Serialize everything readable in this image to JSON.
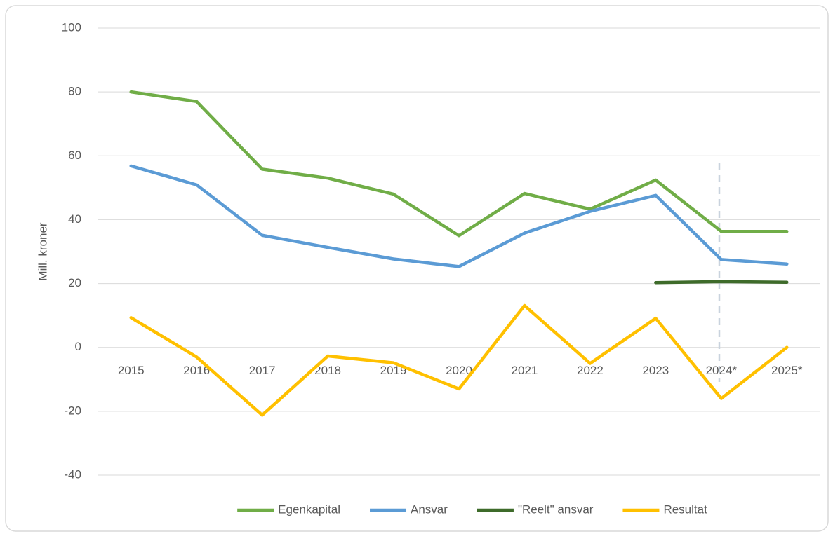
{
  "chart_data": {
    "type": "line",
    "y_label": "Mill. kroner",
    "categories": [
      "2015",
      "2016",
      "2017",
      "2018",
      "2019",
      "2020",
      "2021",
      "2022",
      "2023",
      "2024*",
      "2025*"
    ],
    "series": [
      {
        "name": "Egenkapital",
        "color": "#70ad47",
        "values": [
          80,
          77,
          55.8,
          53,
          48,
          35,
          48.2,
          43.3,
          52.4,
          36.3,
          36.3
        ]
      },
      {
        "name": "Ansvar",
        "color": "#5b9bd5",
        "values": [
          56.8,
          50.9,
          35.1,
          31.3,
          27.7,
          25.3,
          35.8,
          42.6,
          47.6,
          27.5,
          26.1
        ]
      },
      {
        "name": "\"Reelt\" ansvar",
        "color": "#3e6b2a",
        "values": [
          null,
          null,
          null,
          null,
          null,
          null,
          null,
          null,
          20.3,
          20.6,
          20.4
        ]
      },
      {
        "name": "Resultat",
        "color": "#ffc000",
        "values": [
          9.3,
          -3,
          -21.2,
          -2.7,
          -4.8,
          -13,
          13.1,
          -5,
          9.1,
          -16,
          0
        ]
      }
    ],
    "ylim": [
      -40,
      100
    ],
    "yticks": [
      -40,
      -20,
      0,
      20,
      40,
      60,
      80,
      100
    ],
    "grid": true,
    "legend": "bottom"
  }
}
